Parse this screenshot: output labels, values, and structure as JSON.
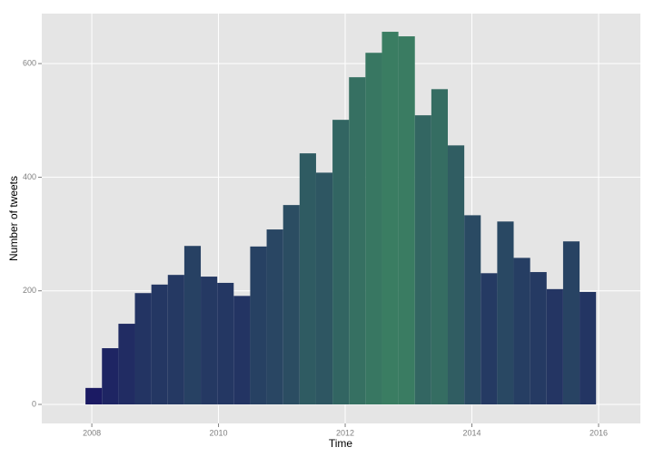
{
  "chart_data": {
    "type": "histogram",
    "x_label": "Time",
    "y_label": "Number of tweets",
    "bins": [
      2007.9,
      2008.16,
      2008.42,
      2008.68,
      2008.94,
      2009.2,
      2009.46,
      2009.72,
      2009.98,
      2010.24,
      2010.5,
      2010.76,
      2011.02,
      2011.28,
      2011.54,
      2011.8,
      2012.06,
      2012.32,
      2012.58,
      2012.84,
      2013.1,
      2013.36,
      2013.62,
      2013.88,
      2014.14,
      2014.4,
      2014.66,
      2014.92,
      2015.18,
      2015.44,
      2015.7,
      2015.96
    ],
    "values": [
      29,
      99,
      142,
      196,
      211,
      228,
      279,
      225,
      214,
      191,
      278,
      308,
      351,
      442,
      408,
      501,
      576,
      619,
      656,
      648,
      509,
      555,
      456,
      333,
      231,
      322,
      258,
      233,
      203,
      287,
      198
    ],
    "color_low": "#1b1a63",
    "color_high": "#3a7d62",
    "xlim": [
      2007.21,
      2016.66
    ],
    "xticks": [
      2008,
      2010,
      2012,
      2014,
      2016
    ],
    "ylim": [
      -33.5,
      688
    ],
    "yticks": [
      0,
      200,
      400,
      600
    ],
    "grid": true
  }
}
